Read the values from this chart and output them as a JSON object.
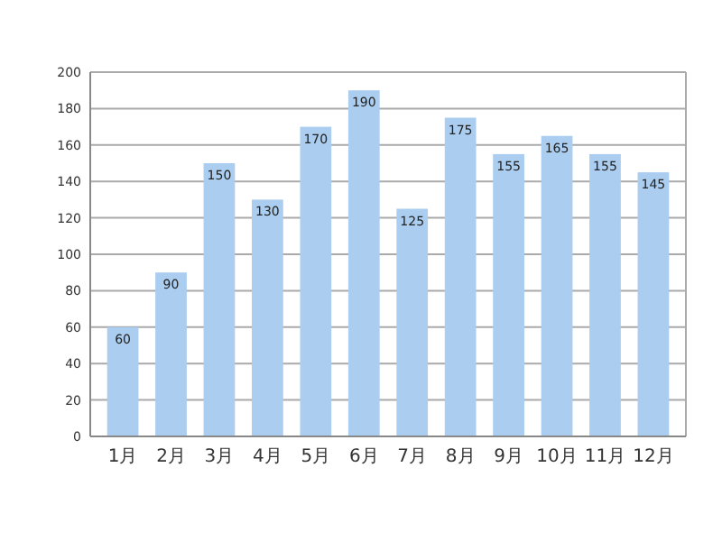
{
  "chart_data": {
    "type": "bar",
    "categories": [
      "1月",
      "2月",
      "3月",
      "4月",
      "5月",
      "6月",
      "7月",
      "8月",
      "9月",
      "10月",
      "11月",
      "12月"
    ],
    "values": [
      60,
      90,
      150,
      130,
      170,
      190,
      125,
      175,
      155,
      165,
      155,
      145
    ],
    "color": "#abcdef",
    "ylim": [
      0,
      200
    ],
    "yticks": [
      0,
      20,
      40,
      60,
      80,
      100,
      120,
      140,
      160,
      180,
      200
    ],
    "grid": "y",
    "data_labels": true
  }
}
